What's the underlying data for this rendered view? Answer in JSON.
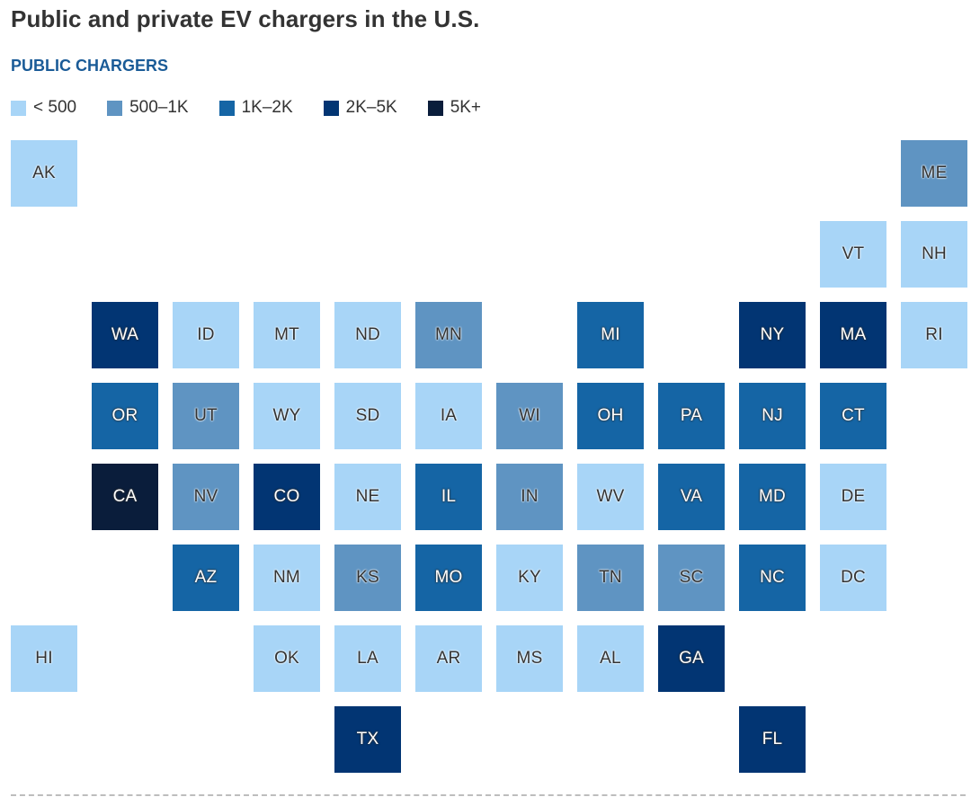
{
  "title": "Public and private EV chargers in the U.S.",
  "subtitle": "PUBLIC CHARGERS",
  "chart_data": {
    "type": "heatmap",
    "subtype": "tile-grid-map",
    "title": "Public and private EV chargers in the U.S.",
    "subtitle": "PUBLIC CHARGERS",
    "legend_position": "top-left",
    "bins": [
      {
        "key": "lt500",
        "label": "< 500",
        "color": "#a8d5f7",
        "text": "dark"
      },
      {
        "key": "500-1k",
        "label": "500–1K",
        "color": "#5f94c2",
        "text": "dark"
      },
      {
        "key": "1k-2k",
        "label": "1K–2K",
        "color": "#1565a5",
        "text": "light"
      },
      {
        "key": "2k-5k",
        "label": "2K–5K",
        "color": "#023573",
        "text": "light"
      },
      {
        "key": "5k+",
        "label": "5K+",
        "color": "#0a1d3b",
        "text": "light"
      }
    ],
    "states": [
      {
        "abbr": "AK",
        "row": 0,
        "col": 0,
        "bin": "lt500"
      },
      {
        "abbr": "ME",
        "row": 0,
        "col": 11,
        "bin": "500-1k"
      },
      {
        "abbr": "VT",
        "row": 1,
        "col": 10,
        "bin": "lt500"
      },
      {
        "abbr": "NH",
        "row": 1,
        "col": 11,
        "bin": "lt500"
      },
      {
        "abbr": "WA",
        "row": 2,
        "col": 1,
        "bin": "2k-5k"
      },
      {
        "abbr": "ID",
        "row": 2,
        "col": 2,
        "bin": "lt500"
      },
      {
        "abbr": "MT",
        "row": 2,
        "col": 3,
        "bin": "lt500"
      },
      {
        "abbr": "ND",
        "row": 2,
        "col": 4,
        "bin": "lt500"
      },
      {
        "abbr": "MN",
        "row": 2,
        "col": 5,
        "bin": "500-1k"
      },
      {
        "abbr": "MI",
        "row": 2,
        "col": 7,
        "bin": "1k-2k"
      },
      {
        "abbr": "NY",
        "row": 2,
        "col": 9,
        "bin": "2k-5k"
      },
      {
        "abbr": "MA",
        "row": 2,
        "col": 10,
        "bin": "2k-5k"
      },
      {
        "abbr": "RI",
        "row": 2,
        "col": 11,
        "bin": "lt500"
      },
      {
        "abbr": "OR",
        "row": 3,
        "col": 1,
        "bin": "1k-2k"
      },
      {
        "abbr": "UT",
        "row": 3,
        "col": 2,
        "bin": "500-1k"
      },
      {
        "abbr": "WY",
        "row": 3,
        "col": 3,
        "bin": "lt500"
      },
      {
        "abbr": "SD",
        "row": 3,
        "col": 4,
        "bin": "lt500"
      },
      {
        "abbr": "IA",
        "row": 3,
        "col": 5,
        "bin": "lt500"
      },
      {
        "abbr": "WI",
        "row": 3,
        "col": 6,
        "bin": "500-1k"
      },
      {
        "abbr": "OH",
        "row": 3,
        "col": 7,
        "bin": "1k-2k"
      },
      {
        "abbr": "PA",
        "row": 3,
        "col": 8,
        "bin": "1k-2k"
      },
      {
        "abbr": "NJ",
        "row": 3,
        "col": 9,
        "bin": "1k-2k"
      },
      {
        "abbr": "CT",
        "row": 3,
        "col": 10,
        "bin": "1k-2k"
      },
      {
        "abbr": "CA",
        "row": 4,
        "col": 1,
        "bin": "5k+"
      },
      {
        "abbr": "NV",
        "row": 4,
        "col": 2,
        "bin": "500-1k"
      },
      {
        "abbr": "CO",
        "row": 4,
        "col": 3,
        "bin": "2k-5k"
      },
      {
        "abbr": "NE",
        "row": 4,
        "col": 4,
        "bin": "lt500"
      },
      {
        "abbr": "IL",
        "row": 4,
        "col": 5,
        "bin": "1k-2k"
      },
      {
        "abbr": "IN",
        "row": 4,
        "col": 6,
        "bin": "500-1k"
      },
      {
        "abbr": "WV",
        "row": 4,
        "col": 7,
        "bin": "lt500"
      },
      {
        "abbr": "VA",
        "row": 4,
        "col": 8,
        "bin": "1k-2k"
      },
      {
        "abbr": "MD",
        "row": 4,
        "col": 9,
        "bin": "1k-2k"
      },
      {
        "abbr": "DE",
        "row": 4,
        "col": 10,
        "bin": "lt500"
      },
      {
        "abbr": "AZ",
        "row": 5,
        "col": 2,
        "bin": "1k-2k"
      },
      {
        "abbr": "NM",
        "row": 5,
        "col": 3,
        "bin": "lt500"
      },
      {
        "abbr": "KS",
        "row": 5,
        "col": 4,
        "bin": "500-1k"
      },
      {
        "abbr": "MO",
        "row": 5,
        "col": 5,
        "bin": "1k-2k"
      },
      {
        "abbr": "KY",
        "row": 5,
        "col": 6,
        "bin": "lt500"
      },
      {
        "abbr": "TN",
        "row": 5,
        "col": 7,
        "bin": "500-1k"
      },
      {
        "abbr": "SC",
        "row": 5,
        "col": 8,
        "bin": "500-1k"
      },
      {
        "abbr": "NC",
        "row": 5,
        "col": 9,
        "bin": "1k-2k"
      },
      {
        "abbr": "DC",
        "row": 5,
        "col": 10,
        "bin": "lt500"
      },
      {
        "abbr": "HI",
        "row": 6,
        "col": 0,
        "bin": "lt500"
      },
      {
        "abbr": "OK",
        "row": 6,
        "col": 3,
        "bin": "lt500"
      },
      {
        "abbr": "LA",
        "row": 6,
        "col": 4,
        "bin": "lt500"
      },
      {
        "abbr": "AR",
        "row": 6,
        "col": 5,
        "bin": "lt500"
      },
      {
        "abbr": "MS",
        "row": 6,
        "col": 6,
        "bin": "lt500"
      },
      {
        "abbr": "AL",
        "row": 6,
        "col": 7,
        "bin": "lt500"
      },
      {
        "abbr": "GA",
        "row": 6,
        "col": 8,
        "bin": "2k-5k"
      },
      {
        "abbr": "TX",
        "row": 7,
        "col": 4,
        "bin": "2k-5k"
      },
      {
        "abbr": "FL",
        "row": 7,
        "col": 9,
        "bin": "2k-5k"
      }
    ]
  }
}
